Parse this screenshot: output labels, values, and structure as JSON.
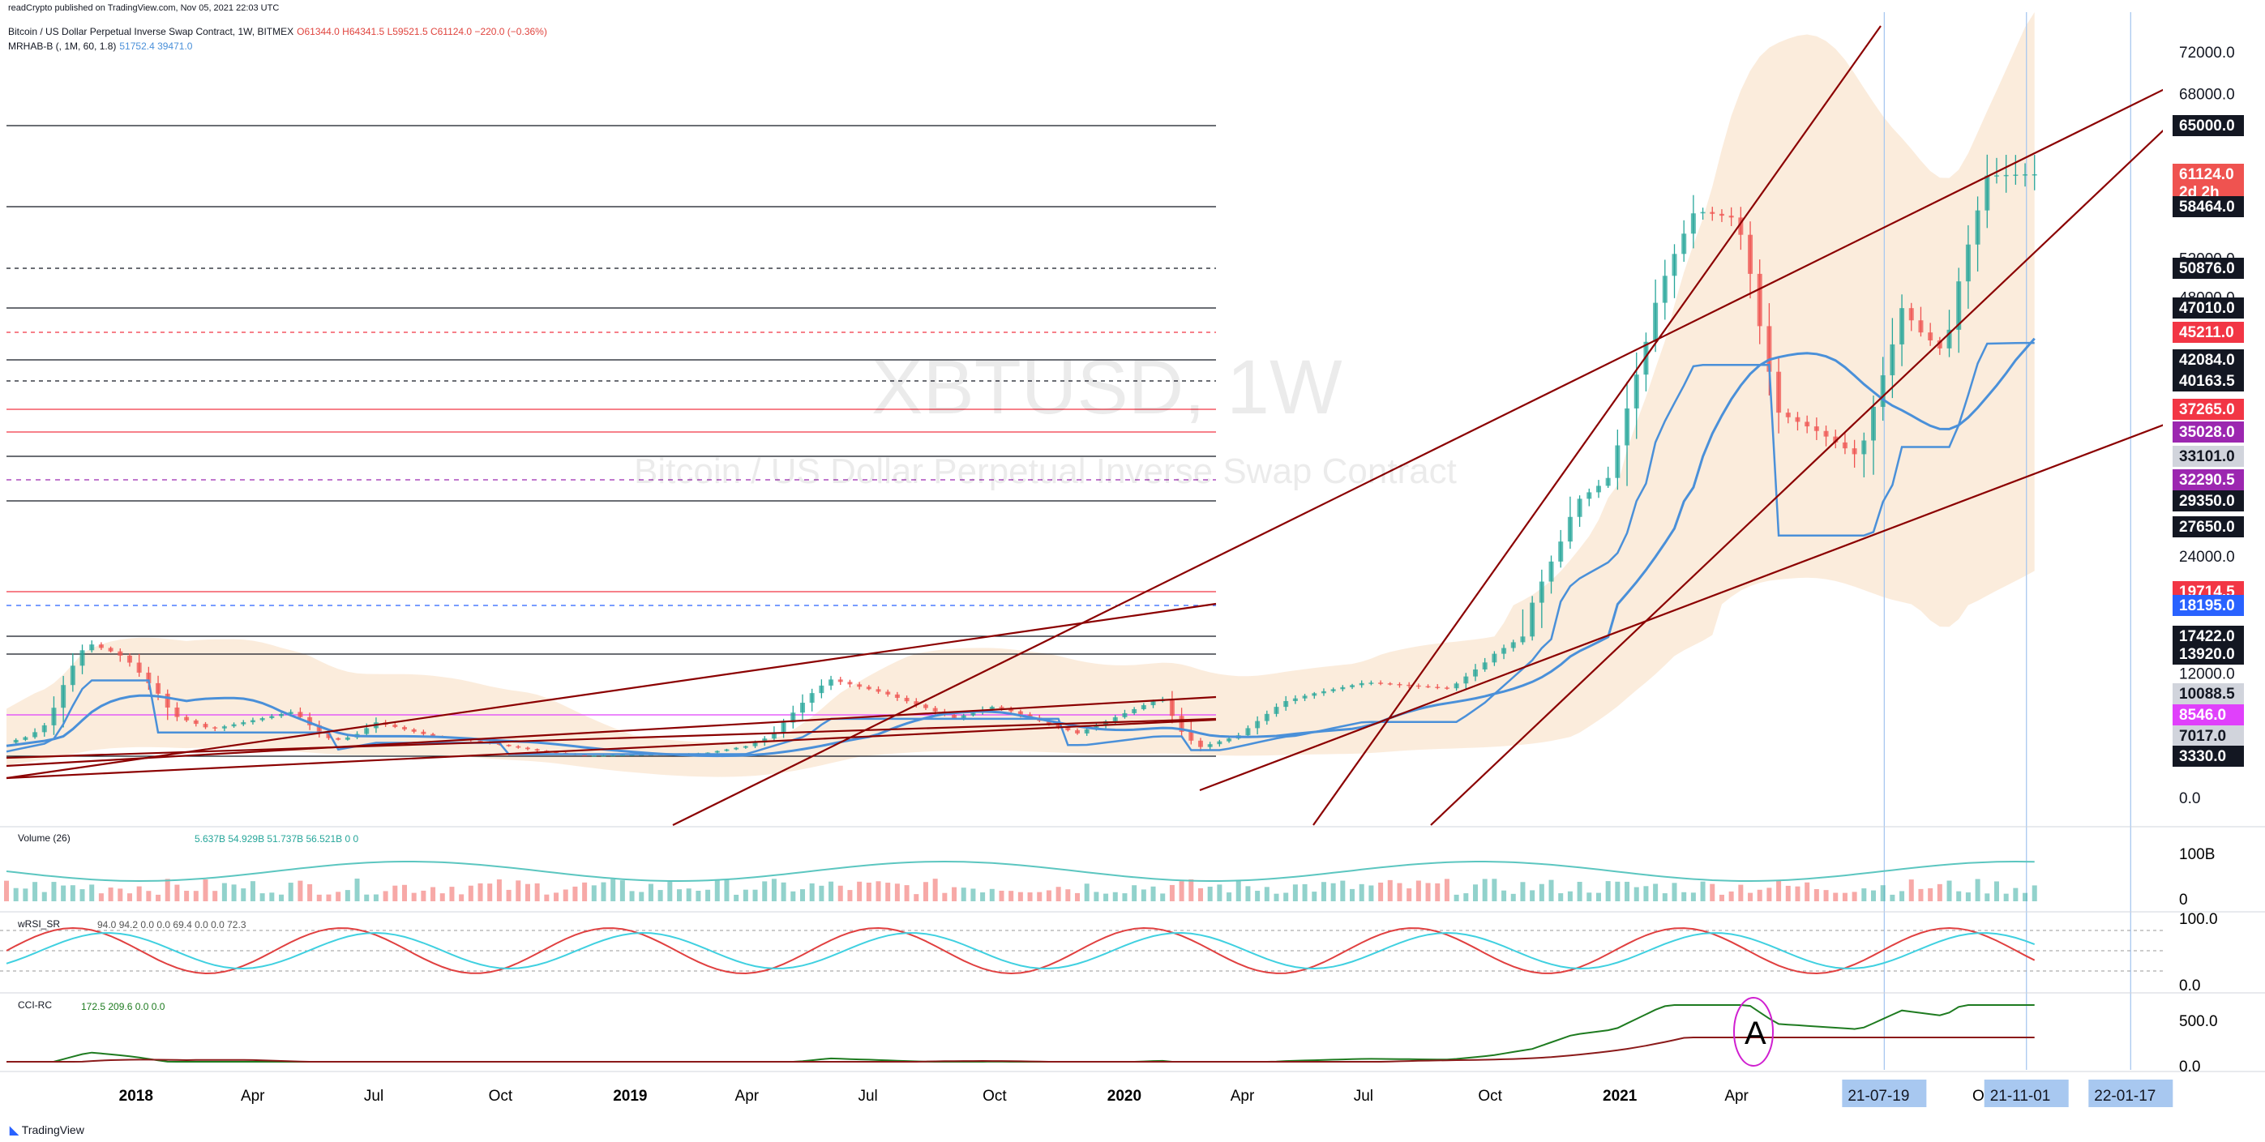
{
  "published": "readCrypto published on TradingView.com, Nov 05, 2021 22:03 UTC",
  "symbol_line": {
    "title": "Bitcoin / US Dollar Perpetual Inverse Swap Contract, 1W, BITMEX",
    "ohlc": "O61344.0  H64341.5  L59521.5  C61124.0  −220.0 (−0.36%)"
  },
  "indicator_line": {
    "name": "MRHAB-B (, 1M, 60, 1.8)",
    "values": "51752.4  39471.0"
  },
  "watermark": {
    "ticker": "XBTUSD, 1W",
    "description": "Bitcoin / US Dollar Perpetual Inverse Swap Contract"
  },
  "colors": {
    "up": "#26a69a",
    "down": "#ef5350",
    "resistance": "#8b0000",
    "ma_blue": "#4a90d9",
    "band_fill": "#f7dcc0",
    "cloud_red": "#f4b6b3",
    "cloud_green": "#b6e3dc",
    "purple": "#a52ae0",
    "highlight_blue": "#a8c8f0"
  },
  "price_axis": {
    "ticks": [
      "72000.0",
      "68000.0",
      "52000.0",
      "48000.0",
      "24000.0",
      "12000.0",
      "0.0"
    ],
    "levels": [
      {
        "label": "65000.0",
        "value": 65000,
        "style": "black",
        "line": "solid"
      },
      {
        "label": "61124.0\n2d 2h",
        "value": 61124,
        "style": "red-current",
        "line": "none"
      },
      {
        "label": "58464.0",
        "value": 58464,
        "style": "black",
        "line": "solid"
      },
      {
        "label": "50876.0",
        "value": 50876,
        "style": "black",
        "line": "dashed"
      },
      {
        "label": "47010.0",
        "value": 47010,
        "style": "black",
        "line": "solid"
      },
      {
        "label": "45211.0",
        "value": 45211,
        "style": "red",
        "line": "dashed-red"
      },
      {
        "label": "42084.0",
        "value": 42084,
        "style": "black",
        "line": "solid"
      },
      {
        "label": "40163.5",
        "value": 40163.5,
        "style": "black",
        "line": "dashed"
      },
      {
        "label": "37265.0",
        "value": 37265,
        "style": "red",
        "line": "solid-red"
      },
      {
        "label": "35028.0",
        "value": 35028,
        "style": "purple",
        "line": "solid-red"
      },
      {
        "label": "33101.0",
        "value": 33101,
        "style": "grey",
        "line": "solid"
      },
      {
        "label": "32290.5",
        "value": 32290.5,
        "style": "purple",
        "line": "dashed-purple"
      },
      {
        "label": "29350.0",
        "value": 29350,
        "style": "black",
        "line": "solid"
      },
      {
        "label": "27650.0",
        "value": 27650,
        "style": "black",
        "line": "none"
      },
      {
        "label": "19714.5",
        "value": 19714.5,
        "style": "red",
        "line": "solid-red"
      },
      {
        "label": "18195.0",
        "value": 18195,
        "style": "blue",
        "line": "dashed-blue"
      },
      {
        "label": "17422.0",
        "value": 17422,
        "style": "black",
        "line": "solid"
      },
      {
        "label": "13920.0",
        "value": 13920,
        "style": "black",
        "line": "solid"
      },
      {
        "label": "10088.5",
        "value": 10088.5,
        "style": "grey",
        "line": "none"
      },
      {
        "label": "8546.0",
        "value": 8546,
        "style": "magenta",
        "line": "solid-magenta"
      },
      {
        "label": "7017.0",
        "value": 7017,
        "style": "grey",
        "line": "none"
      },
      {
        "label": "3330.0",
        "value": 3330,
        "style": "black",
        "line": "solid"
      }
    ]
  },
  "time_axis": {
    "ticks": [
      "2018",
      "Apr",
      "Jul",
      "Oct",
      "2019",
      "Apr",
      "Jul",
      "Oct",
      "2020",
      "Apr",
      "Jul",
      "Oct",
      "2021",
      "Apr",
      "Jul",
      "Oct"
    ],
    "highlighted": [
      "21-07-19",
      "21-11-01",
      "22-01-17"
    ]
  },
  "chart_data": {
    "type": "candlestick",
    "title": "Bitcoin / US Dollar Perpetual Inverse Swap Contract, 1W, BITMEX",
    "interval": "1W",
    "x_range": [
      "2017-10",
      "2022-01"
    ],
    "y_scale": "log",
    "ylim": [
      3000,
      75000
    ],
    "current_price": 61124.0,
    "last_bar": {
      "open": 61344.0,
      "high": 64341.5,
      "low": 59521.5,
      "close": 61124.0,
      "change": -220.0,
      "change_pct": -0.36
    },
    "price_path_approx": [
      {
        "date": "2017-10",
        "price": 5800
      },
      {
        "date": "2017-11",
        "price": 8000
      },
      {
        "date": "2017-12",
        "price": 16000
      },
      {
        "date": "2018-01",
        "price": 13000
      },
      {
        "date": "2018-02",
        "price": 8500
      },
      {
        "date": "2018-03",
        "price": 7500
      },
      {
        "date": "2018-05",
        "price": 8800
      },
      {
        "date": "2018-06",
        "price": 6200
      },
      {
        "date": "2018-07",
        "price": 8000
      },
      {
        "date": "2018-09",
        "price": 6500
      },
      {
        "date": "2018-11",
        "price": 4200
      },
      {
        "date": "2018-12",
        "price": 3400
      },
      {
        "date": "2019-03",
        "price": 3900
      },
      {
        "date": "2019-04",
        "price": 5200
      },
      {
        "date": "2019-06",
        "price": 11500
      },
      {
        "date": "2019-07",
        "price": 10500
      },
      {
        "date": "2019-09",
        "price": 8300
      },
      {
        "date": "2019-10",
        "price": 9200
      },
      {
        "date": "2019-12",
        "price": 7200
      },
      {
        "date": "2020-02",
        "price": 9800
      },
      {
        "date": "2020-03",
        "price": 5000
      },
      {
        "date": "2020-05",
        "price": 9500
      },
      {
        "date": "2020-07",
        "price": 11200
      },
      {
        "date": "2020-09",
        "price": 10600
      },
      {
        "date": "2020-10",
        "price": 13500
      },
      {
        "date": "2020-11",
        "price": 18500
      },
      {
        "date": "2020-12",
        "price": 29000
      },
      {
        "date": "2021-01",
        "price": 33000
      },
      {
        "date": "2021-02",
        "price": 48000
      },
      {
        "date": "2021-03",
        "price": 58000
      },
      {
        "date": "2021-04",
        "price": 57000
      },
      {
        "date": "2021-05",
        "price": 37000
      },
      {
        "date": "2021-06",
        "price": 35000
      },
      {
        "date": "2021-07",
        "price": 33000
      },
      {
        "date": "2021-08",
        "price": 47000
      },
      {
        "date": "2021-09",
        "price": 43000
      },
      {
        "date": "2021-10",
        "price": 61000
      },
      {
        "date": "2021-11",
        "price": 61124
      }
    ],
    "volume_pane": {
      "label": "Volume (26)",
      "values": [
        "5.637B",
        "54.929B",
        "51.737B",
        "56.521B",
        "0",
        "0"
      ],
      "ticks": [
        "100B",
        "0"
      ]
    },
    "wrsi_pane": {
      "label": "wRSI_SR",
      "values": [
        "94.0",
        "94.2",
        "0.0",
        "0.0",
        "69.4",
        "0.0",
        "0.0",
        "72.3"
      ],
      "ticks": [
        "100.0",
        "0.0"
      ]
    },
    "cci_pane": {
      "label": "CCI-RC",
      "values": [
        "172.5",
        "209.6",
        "0.0",
        "0.0"
      ],
      "ticks": [
        "500.0",
        "0.0"
      ],
      "annotation": "A"
    }
  },
  "brand": "TradingView"
}
